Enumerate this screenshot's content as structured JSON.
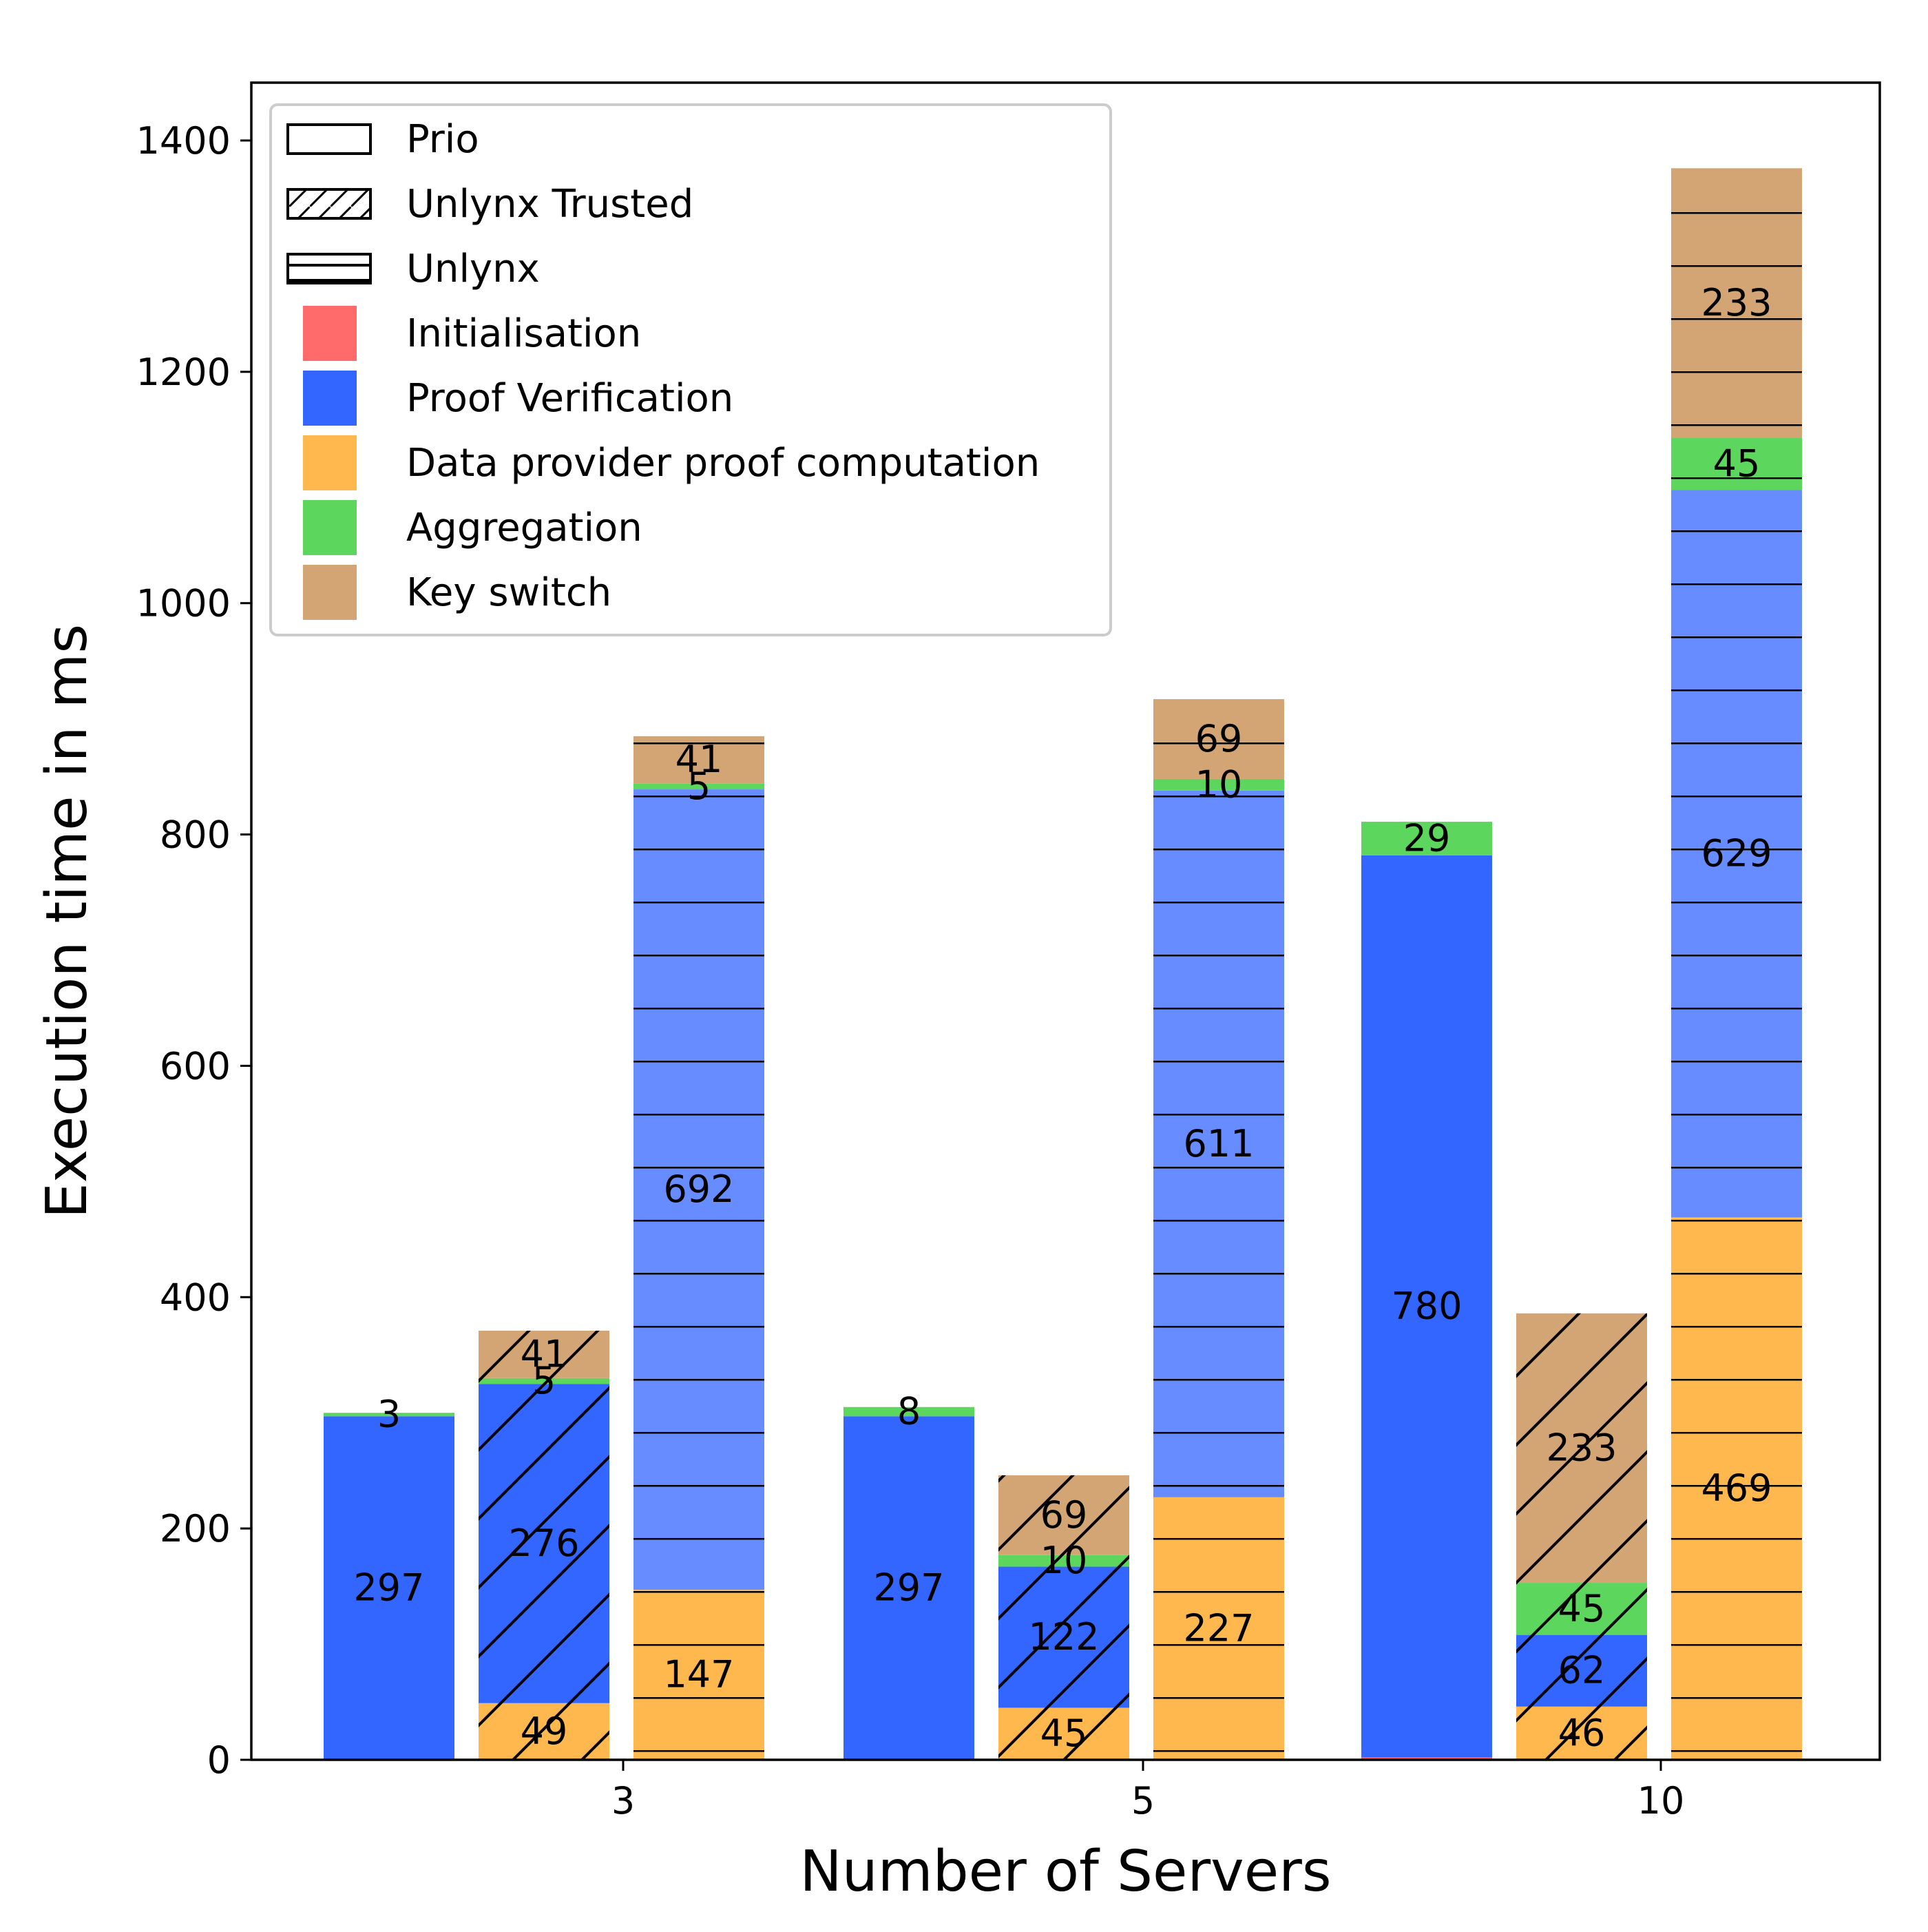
{
  "chart_data": {
    "type": "bar",
    "stacked": true,
    "xlabel": "Number of Servers",
    "ylabel": "Execution time in ms",
    "ylim": [
      0,
      1450
    ],
    "yticks": [
      0,
      200,
      400,
      600,
      800,
      1000,
      1200,
      1400
    ],
    "grid": false,
    "legend_position": "top-left",
    "categories": [
      "3",
      "5",
      "10"
    ],
    "systems": [
      {
        "name": "Prio",
        "hatch": "none"
      },
      {
        "name": "Unlynx Trusted",
        "hatch": "diagonal"
      },
      {
        "name": "Unlynx",
        "hatch": "horizontal"
      }
    ],
    "components": [
      {
        "name": "Initialisation",
        "color": "#ff6b6b"
      },
      {
        "name": "Proof Verification",
        "color": "#3366ff"
      },
      {
        "name": "Data provider proof computation",
        "color": "#ffb84d"
      },
      {
        "name": "Aggregation",
        "color": "#5cd65c"
      },
      {
        "name": "Key switch",
        "color": "#d4a574"
      }
    ],
    "bars": [
      {
        "category": "3",
        "system": "Prio",
        "segments": [
          {
            "component": "Initialisation",
            "value": 0,
            "label": ""
          },
          {
            "component": "Proof Verification",
            "value": 297,
            "label": "297"
          },
          {
            "component": "Aggregation",
            "value": 3,
            "label": "3"
          }
        ]
      },
      {
        "category": "3",
        "system": "Unlynx Trusted",
        "segments": [
          {
            "component": "Data provider proof computation",
            "value": 49,
            "label": "49"
          },
          {
            "component": "Proof Verification",
            "value": 276,
            "label": "276"
          },
          {
            "component": "Aggregation",
            "value": 5,
            "label": "5"
          },
          {
            "component": "Key switch",
            "value": 41,
            "label": "41"
          }
        ]
      },
      {
        "category": "3",
        "system": "Unlynx",
        "segments": [
          {
            "component": "Data provider proof computation",
            "value": 147,
            "label": "147"
          },
          {
            "component": "Proof Verification",
            "value": 692,
            "label": "692"
          },
          {
            "component": "Aggregation",
            "value": 5,
            "label": "5"
          },
          {
            "component": "Key switch",
            "value": 41,
            "label": "41"
          }
        ]
      },
      {
        "category": "5",
        "system": "Prio",
        "segments": [
          {
            "component": "Initialisation",
            "value": 0,
            "label": ""
          },
          {
            "component": "Proof Verification",
            "value": 297,
            "label": "297"
          },
          {
            "component": "Aggregation",
            "value": 8,
            "label": "8"
          }
        ]
      },
      {
        "category": "5",
        "system": "Unlynx Trusted",
        "segments": [
          {
            "component": "Data provider proof computation",
            "value": 45,
            "label": "45"
          },
          {
            "component": "Proof Verification",
            "value": 122,
            "label": "122"
          },
          {
            "component": "Aggregation",
            "value": 10,
            "label": "10"
          },
          {
            "component": "Key switch",
            "value": 69,
            "label": "69"
          }
        ]
      },
      {
        "category": "5",
        "system": "Unlynx",
        "segments": [
          {
            "component": "Data provider proof computation",
            "value": 227,
            "label": "227"
          },
          {
            "component": "Proof Verification",
            "value": 611,
            "label": "611"
          },
          {
            "component": "Aggregation",
            "value": 10,
            "label": "10"
          },
          {
            "component": "Key switch",
            "value": 69,
            "label": "69"
          }
        ]
      },
      {
        "category": "10",
        "system": "Prio",
        "segments": [
          {
            "component": "Initialisation",
            "value": 2,
            "label": ""
          },
          {
            "component": "Proof Verification",
            "value": 780,
            "label": "780"
          },
          {
            "component": "Aggregation",
            "value": 29,
            "label": "29"
          }
        ]
      },
      {
        "category": "10",
        "system": "Unlynx Trusted",
        "segments": [
          {
            "component": "Data provider proof computation",
            "value": 46,
            "label": "46"
          },
          {
            "component": "Proof Verification",
            "value": 62,
            "label": "62"
          },
          {
            "component": "Aggregation",
            "value": 45,
            "label": "45"
          },
          {
            "component": "Key switch",
            "value": 233,
            "label": "233"
          }
        ]
      },
      {
        "category": "10",
        "system": "Unlynx",
        "segments": [
          {
            "component": "Data provider proof computation",
            "value": 469,
            "label": "469"
          },
          {
            "component": "Proof Verification",
            "value": 629,
            "label": "629"
          },
          {
            "component": "Aggregation",
            "value": 45,
            "label": "45"
          },
          {
            "component": "Key switch",
            "value": 233,
            "label": "233"
          }
        ]
      }
    ]
  }
}
